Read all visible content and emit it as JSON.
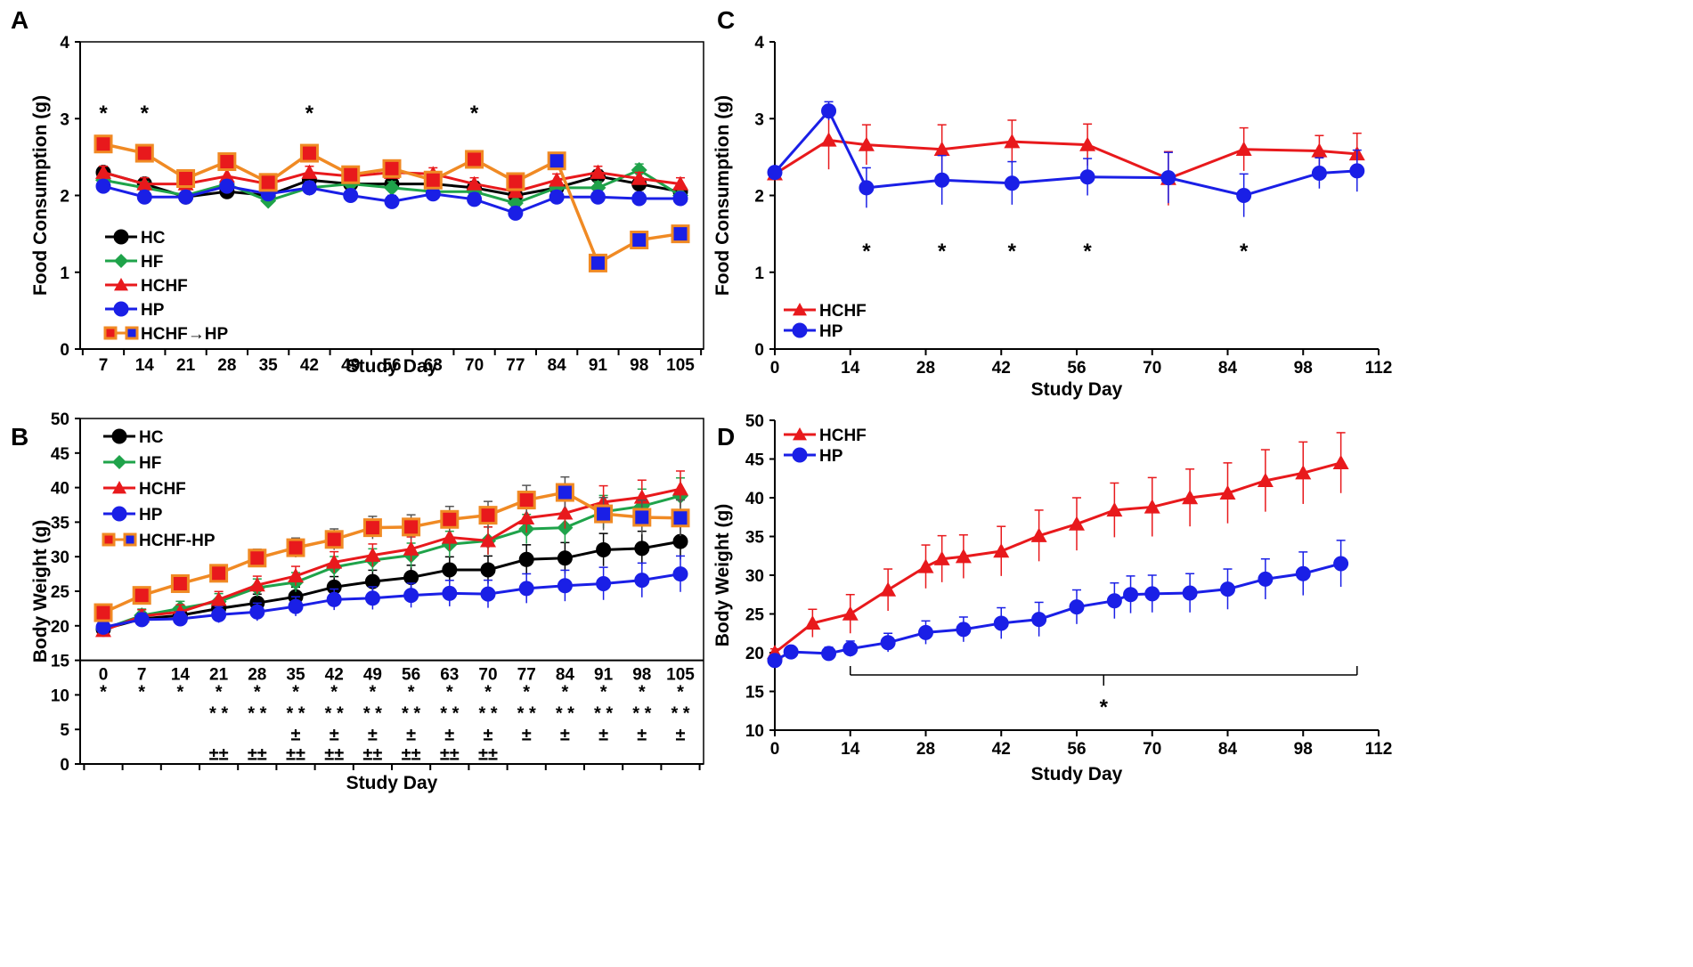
{
  "figure": {
    "panel_labels": [
      "A",
      "B",
      "C",
      "D"
    ]
  },
  "colors": {
    "HC": "#000000",
    "HF": "#1fa34a",
    "HCHF": "#e8191c",
    "HP": "#1a1fe6",
    "switch_line": "#f08a24",
    "switch_fill": "#e8191c",
    "switch_fill_late": "#1a1fe6"
  },
  "chart_data": [
    {
      "id": "A",
      "type": "line",
      "title": "",
      "xlabel": "Study Day",
      "ylabel": "Food Consumption  (g)",
      "ylim": [
        0,
        4
      ],
      "yticks": [
        0,
        1,
        2,
        3,
        4
      ],
      "categories": [
        "7",
        "14",
        "21",
        "28",
        "35",
        "42",
        "49",
        "56",
        "63",
        "70",
        "77",
        "84",
        "91",
        "98",
        "105"
      ],
      "legend": [
        "HC",
        "HF",
        "HCHF",
        "HP",
        "HCHF→HP"
      ],
      "series": [
        {
          "name": "HC",
          "marker": "circle",
          "values": [
            2.3,
            2.15,
            1.98,
            2.05,
            2.0,
            2.2,
            2.15,
            2.15,
            2.15,
            2.1,
            2.0,
            2.1,
            2.25,
            2.15,
            2.05
          ]
        },
        {
          "name": "HF",
          "marker": "diamond",
          "values": [
            2.2,
            2.1,
            2.0,
            2.15,
            1.93,
            2.1,
            2.15,
            2.1,
            2.05,
            2.05,
            1.9,
            2.1,
            2.1,
            2.33,
            2.0
          ]
        },
        {
          "name": "HCHF",
          "marker": "triangle",
          "values": [
            2.3,
            2.15,
            2.15,
            2.25,
            2.15,
            2.3,
            2.25,
            2.3,
            2.28,
            2.15,
            2.05,
            2.2,
            2.3,
            2.22,
            2.15
          ]
        },
        {
          "name": "HP",
          "marker": "circle",
          "values": [
            2.12,
            1.98,
            1.98,
            2.12,
            2.02,
            2.1,
            2.0,
            1.92,
            2.02,
            1.95,
            1.77,
            1.98,
            1.98,
            1.96,
            1.96
          ]
        },
        {
          "name": "HCHF→HP",
          "marker": "square",
          "switch_index": 11,
          "values": [
            2.67,
            2.55,
            2.22,
            2.44,
            2.17,
            2.55,
            2.27,
            2.35,
            2.2,
            2.47,
            2.18,
            2.45,
            1.12,
            1.42,
            1.5
          ]
        }
      ],
      "annotations": [
        {
          "x": "7",
          "text": "*"
        },
        {
          "x": "14",
          "text": "*"
        },
        {
          "x": "42",
          "text": "*"
        },
        {
          "x": "70",
          "text": "*"
        }
      ]
    },
    {
      "id": "B",
      "type": "line",
      "title": "",
      "xlabel": "Study Day",
      "ylabel": "Body Weight (g)",
      "ylim": [
        0,
        50
      ],
      "yticks": [
        0,
        5,
        10,
        15,
        20,
        25,
        30,
        35,
        40,
        45,
        50
      ],
      "categories": [
        "0",
        "7",
        "14",
        "21",
        "28",
        "35",
        "42",
        "49",
        "56",
        "63",
        "70",
        "77",
        "84",
        "91",
        "98",
        "105"
      ],
      "legend": [
        "HC",
        "HF",
        "HCHF",
        "HP",
        "HCHF-HP"
      ],
      "series": [
        {
          "name": "HC",
          "marker": "circle",
          "values": [
            19.5,
            21.0,
            21.5,
            22.5,
            23.3,
            24.2,
            25.6,
            26.4,
            27.0,
            28.1,
            28.1,
            29.6,
            29.8,
            31.0,
            31.2,
            32.2
          ]
        },
        {
          "name": "HF",
          "marker": "diamond",
          "values": [
            19.5,
            21.5,
            22.5,
            23.5,
            25.5,
            26.3,
            28.5,
            29.5,
            30.2,
            31.8,
            32.3,
            34.0,
            34.2,
            36.5,
            37.3,
            38.8
          ]
        },
        {
          "name": "HCHF",
          "marker": "triangle",
          "values": [
            19.3,
            21.4,
            22.0,
            23.8,
            25.9,
            27.2,
            29.2,
            30.2,
            31.1,
            32.8,
            32.3,
            35.6,
            36.3,
            37.9,
            38.6,
            39.8
          ]
        },
        {
          "name": "HP",
          "marker": "circle",
          "values": [
            19.8,
            20.9,
            21.0,
            21.6,
            22.0,
            22.8,
            23.8,
            24.0,
            24.4,
            24.7,
            24.6,
            25.4,
            25.8,
            26.1,
            26.6,
            27.5
          ]
        },
        {
          "name": "HCHF-HP",
          "marker": "square",
          "switch_index": 12,
          "values": [
            21.9,
            24.4,
            26.1,
            27.6,
            29.8,
            31.3,
            32.5,
            34.2,
            34.3,
            35.4,
            36.0,
            38.2,
            39.3,
            36.2,
            35.7,
            35.6
          ]
        }
      ],
      "significance_rows": [
        {
          "symbol": "*",
          "days": [
            "0",
            "7",
            "14",
            "21",
            "28",
            "35",
            "42",
            "49",
            "56",
            "63",
            "70",
            "77",
            "84",
            "91",
            "98",
            "105"
          ]
        },
        {
          "symbol": "* *",
          "days": [
            "21",
            "28",
            "35",
            "42",
            "49",
            "56",
            "63",
            "70",
            "77",
            "84",
            "91",
            "98",
            "105"
          ]
        },
        {
          "symbol": "±",
          "days": [
            "35",
            "42",
            "49",
            "56",
            "63",
            "70",
            "77",
            "84",
            "91",
            "98",
            "105"
          ]
        },
        {
          "symbol": "±±",
          "days": [
            "21",
            "28",
            "35",
            "42",
            "49",
            "56",
            "63",
            "70"
          ]
        }
      ]
    },
    {
      "id": "C",
      "type": "line",
      "title": "",
      "xlabel": "Study Day",
      "ylabel": "Food Consumption (g)",
      "xlim": [
        0,
        112
      ],
      "xticks": [
        0,
        14,
        28,
        42,
        56,
        70,
        84,
        98,
        112
      ],
      "ylim": [
        0,
        4
      ],
      "yticks": [
        0,
        1,
        2,
        3,
        4
      ],
      "legend": [
        "HCHF",
        "HP"
      ],
      "series": [
        {
          "name": "HCHF",
          "marker": "triangle",
          "x": [
            0,
            10,
            17,
            31,
            44,
            58,
            73,
            87,
            101,
            108
          ],
          "values": [
            2.28,
            2.72,
            2.66,
            2.6,
            2.7,
            2.66,
            2.22,
            2.6,
            2.58,
            2.54
          ],
          "errors": [
            0.05,
            0.38,
            0.26,
            0.32,
            0.28,
            0.27,
            0.35,
            0.28,
            0.2,
            0.27
          ]
        },
        {
          "name": "HP",
          "marker": "circle",
          "x": [
            0,
            10,
            17,
            31,
            44,
            58,
            73,
            87,
            101,
            108
          ],
          "values": [
            2.3,
            3.1,
            2.1,
            2.2,
            2.16,
            2.24,
            2.23,
            2.0,
            2.29,
            2.32
          ],
          "errors": [
            0.05,
            0.12,
            0.26,
            0.32,
            0.28,
            0.24,
            0.33,
            0.28,
            0.2,
            0.27
          ]
        }
      ],
      "annotations": [
        {
          "x": 17,
          "text": "*"
        },
        {
          "x": 31,
          "text": "*"
        },
        {
          "x": 44,
          "text": "*"
        },
        {
          "x": 58,
          "text": "*"
        },
        {
          "x": 87,
          "text": "*"
        }
      ]
    },
    {
      "id": "D",
      "type": "line",
      "title": "",
      "xlabel": "Study Day",
      "ylabel": "Body Weight (g)",
      "xlim": [
        0,
        112
      ],
      "xticks": [
        0,
        14,
        28,
        42,
        56,
        70,
        84,
        98,
        112
      ],
      "ylim": [
        10,
        50
      ],
      "yticks": [
        10,
        15,
        20,
        25,
        30,
        35,
        40,
        45,
        50
      ],
      "legend": [
        "HCHF",
        "HP"
      ],
      "series": [
        {
          "name": "HCHF",
          "marker": "triangle",
          "x": [
            0,
            7,
            14,
            21,
            28,
            31,
            35,
            42,
            49,
            56,
            63,
            70,
            77,
            84,
            91,
            98,
            105
          ],
          "values": [
            20.0,
            23.8,
            25.0,
            28.1,
            31.1,
            32.1,
            32.4,
            33.1,
            35.1,
            36.6,
            38.4,
            38.8,
            40.0,
            40.6,
            42.2,
            43.2,
            44.5
          ],
          "errors": [
            0.5,
            1.8,
            2.5,
            2.7,
            2.8,
            3.0,
            2.8,
            3.2,
            3.3,
            3.4,
            3.5,
            3.8,
            3.7,
            3.9,
            4.0,
            4.0,
            3.9
          ]
        },
        {
          "name": "HP",
          "marker": "circle",
          "x": [
            0,
            3,
            10,
            14,
            21,
            28,
            35,
            42,
            49,
            56,
            63,
            66,
            70,
            77,
            84,
            91,
            98,
            105
          ],
          "values": [
            19.0,
            20.1,
            19.9,
            20.5,
            21.3,
            22.6,
            23.0,
            23.8,
            24.3,
            25.9,
            26.7,
            27.5,
            27.6,
            27.7,
            28.2,
            29.5,
            30.2,
            31.5
          ],
          "errors": [
            0.5,
            0.6,
            0.8,
            1.0,
            1.2,
            1.5,
            1.6,
            2.0,
            2.2,
            2.2,
            2.3,
            2.4,
            2.4,
            2.5,
            2.6,
            2.6,
            2.8,
            3.0
          ]
        }
      ],
      "annotations": [
        {
          "from": 14,
          "to": 108,
          "text": "*"
        }
      ]
    }
  ]
}
